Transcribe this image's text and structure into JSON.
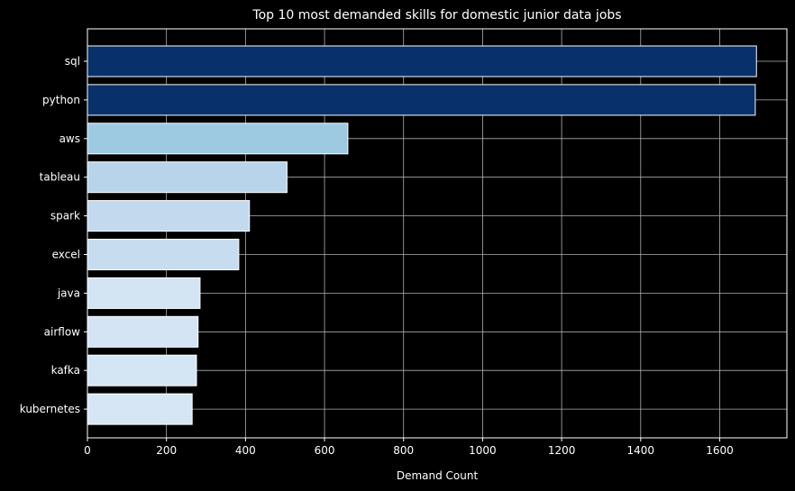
{
  "chart_data": {
    "type": "bar",
    "orientation": "horizontal",
    "title": "Top 10 most demanded skills for domestic junior data jobs",
    "xlabel": "Demand Count",
    "ylabel": "",
    "xlim": [
      0,
      1770
    ],
    "xticks": [
      0,
      200,
      400,
      600,
      800,
      1000,
      1200,
      1400,
      1600
    ],
    "grid": true,
    "background": "#000000",
    "bar_edge_color": "#ffffff",
    "categories": [
      "sql",
      "python",
      "aws",
      "tableau",
      "spark",
      "excel",
      "java",
      "airflow",
      "kafka",
      "kubernetes"
    ],
    "values": [
      1693,
      1690,
      659,
      505,
      410,
      383,
      285,
      280,
      276,
      265
    ],
    "colors": [
      "#08306b",
      "#08306b",
      "#9ecae1",
      "#b7d4ea",
      "#c3daee",
      "#c8dcf0",
      "#d3e4f3",
      "#d4e4f4",
      "#d4e5f4",
      "#d6e6f4"
    ]
  }
}
